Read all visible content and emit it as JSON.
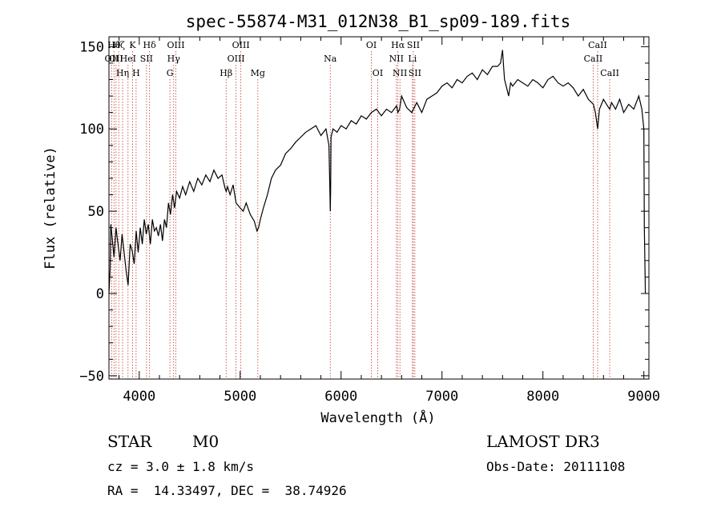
{
  "chart_data": {
    "type": "line",
    "title": "spec-55874-M31_012N38_B1_sp09-189.fits",
    "xlabel": "Wavelength (Å)",
    "ylabel": "Flux (relative)",
    "xlim": [
      3700,
      9050
    ],
    "ylim": [
      -52,
      156
    ],
    "xticks": [
      4000,
      5000,
      6000,
      7000,
      8000,
      9000
    ],
    "yticks": [
      -50,
      0,
      50,
      100,
      150
    ],
    "series": [
      {
        "name": "flux",
        "x": [
          3700,
          3712,
          3718,
          3730,
          3750,
          3770,
          3790,
          3810,
          3830,
          3850,
          3870,
          3890,
          3910,
          3930,
          3950,
          3970,
          3990,
          4010,
          4030,
          4050,
          4070,
          4090,
          4110,
          4130,
          4150,
          4170,
          4190,
          4210,
          4230,
          4250,
          4270,
          4290,
          4310,
          4330,
          4350,
          4370,
          4400,
          4430,
          4460,
          4500,
          4540,
          4580,
          4620,
          4660,
          4700,
          4740,
          4780,
          4820,
          4850,
          4862,
          4875,
          4900,
          4930,
          4960,
          5000,
          5030,
          5060,
          5100,
          5140,
          5167,
          5183,
          5200,
          5230,
          5270,
          5310,
          5350,
          5400,
          5450,
          5500,
          5550,
          5600,
          5650,
          5700,
          5750,
          5800,
          5850,
          5880,
          5890,
          5893,
          5896,
          5900,
          5920,
          5960,
          6000,
          6050,
          6100,
          6150,
          6200,
          6250,
          6300,
          6350,
          6400,
          6450,
          6500,
          6550,
          6563,
          6580,
          6600,
          6650,
          6700,
          6750,
          6800,
          6850,
          6900,
          6950,
          7000,
          7050,
          7100,
          7150,
          7200,
          7250,
          7300,
          7350,
          7400,
          7450,
          7500,
          7550,
          7580,
          7600,
          7610,
          7620,
          7640,
          7660,
          7680,
          7700,
          7750,
          7800,
          7850,
          7900,
          7950,
          8000,
          8050,
          8100,
          8150,
          8200,
          8250,
          8300,
          8350,
          8400,
          8450,
          8500,
          8520,
          8542,
          8560,
          8600,
          8640,
          8662,
          8680,
          8720,
          8760,
          8800,
          8850,
          8900,
          8950,
          8980,
          9000,
          9005,
          9015
        ],
        "values": [
          0,
          15,
          42,
          35,
          22,
          40,
          30,
          20,
          36,
          25,
          14,
          5,
          30,
          26,
          18,
          38,
          25,
          40,
          30,
          45,
          36,
          42,
          30,
          45,
          38,
          40,
          35,
          42,
          32,
          45,
          40,
          55,
          48,
          60,
          52,
          62,
          58,
          65,
          60,
          68,
          62,
          70,
          66,
          72,
          68,
          75,
          70,
          72,
          64,
          62,
          65,
          60,
          66,
          55,
          52,
          50,
          55,
          48,
          44,
          38,
          40,
          45,
          52,
          60,
          70,
          75,
          78,
          85,
          88,
          92,
          95,
          98,
          100,
          102,
          96,
          100,
          90,
          60,
          50,
          62,
          95,
          100,
          98,
          102,
          100,
          105,
          103,
          108,
          106,
          110,
          112,
          108,
          112,
          110,
          114,
          110,
          112,
          120,
          113,
          110,
          116,
          110,
          118,
          120,
          122,
          126,
          128,
          125,
          130,
          128,
          132,
          134,
          130,
          136,
          133,
          138,
          138,
          140,
          148,
          138,
          130,
          125,
          120,
          128,
          126,
          130,
          128,
          126,
          130,
          128,
          125,
          130,
          132,
          128,
          126,
          128,
          125,
          120,
          124,
          118,
          115,
          110,
          100,
          112,
          118,
          114,
          112,
          116,
          112,
          118,
          110,
          115,
          112,
          120,
          112,
          100,
          40,
          0
        ]
      }
    ],
    "reference_lines": [
      {
        "wavelength": 3727,
        "label": "OII",
        "row": 2
      },
      {
        "wavelength": 3750,
        "label": "Hθ",
        "row": 1
      },
      {
        "wavelength": 3770,
        "label": "OII",
        "row": 2
      },
      {
        "wavelength": 3797,
        "label": "Hζ",
        "row": 1
      },
      {
        "wavelength": 3835,
        "label": "Hη",
        "row": 3
      },
      {
        "wavelength": 3889,
        "label": "HeI",
        "row": 2
      },
      {
        "wavelength": 3934,
        "label": "K",
        "row": 1
      },
      {
        "wavelength": 3969,
        "label": "H",
        "row": 3
      },
      {
        "wavelength": 4072,
        "label": "SII",
        "row": 2
      },
      {
        "wavelength": 4102,
        "label": "Hδ",
        "row": 1
      },
      {
        "wavelength": 4304,
        "label": "G",
        "row": 3
      },
      {
        "wavelength": 4341,
        "label": "Hγ",
        "row": 2
      },
      {
        "wavelength": 4363,
        "label": "OIII",
        "row": 1
      },
      {
        "wavelength": 4861,
        "label": "Hβ",
        "row": 3
      },
      {
        "wavelength": 4959,
        "label": "OIII",
        "row": 2
      },
      {
        "wavelength": 5007,
        "label": "OIII",
        "row": 1
      },
      {
        "wavelength": 5175,
        "label": "Mg",
        "row": 3
      },
      {
        "wavelength": 5893,
        "label": "Na",
        "row": 2
      },
      {
        "wavelength": 6300,
        "label": "OI",
        "row": 1
      },
      {
        "wavelength": 6363,
        "label": "OI",
        "row": 3
      },
      {
        "wavelength": 6548,
        "label": "NII",
        "row": 2
      },
      {
        "wavelength": 6563,
        "label": "Hα",
        "row": 1
      },
      {
        "wavelength": 6583,
        "label": "NII",
        "row": 3
      },
      {
        "wavelength": 6707,
        "label": "Li",
        "row": 2
      },
      {
        "wavelength": 6716,
        "label": "SII",
        "row": 1
      },
      {
        "wavelength": 6731,
        "label": "SII",
        "row": 3
      },
      {
        "wavelength": 8498,
        "label": "CaII",
        "row": 2
      },
      {
        "wavelength": 8542,
        "label": "CaII",
        "row": 1
      },
      {
        "wavelength": 8662,
        "label": "CaII",
        "row": 3
      }
    ]
  },
  "info": {
    "class_label": "STAR",
    "subclass": "M0",
    "survey": "LAMOST DR3",
    "redshift_text": "cz = 3.0 ± 1.8 km/s",
    "obs_date_text": "Obs-Date: 20111108",
    "coords_text": "RA =  14.33497, DEC =  38.74926"
  }
}
